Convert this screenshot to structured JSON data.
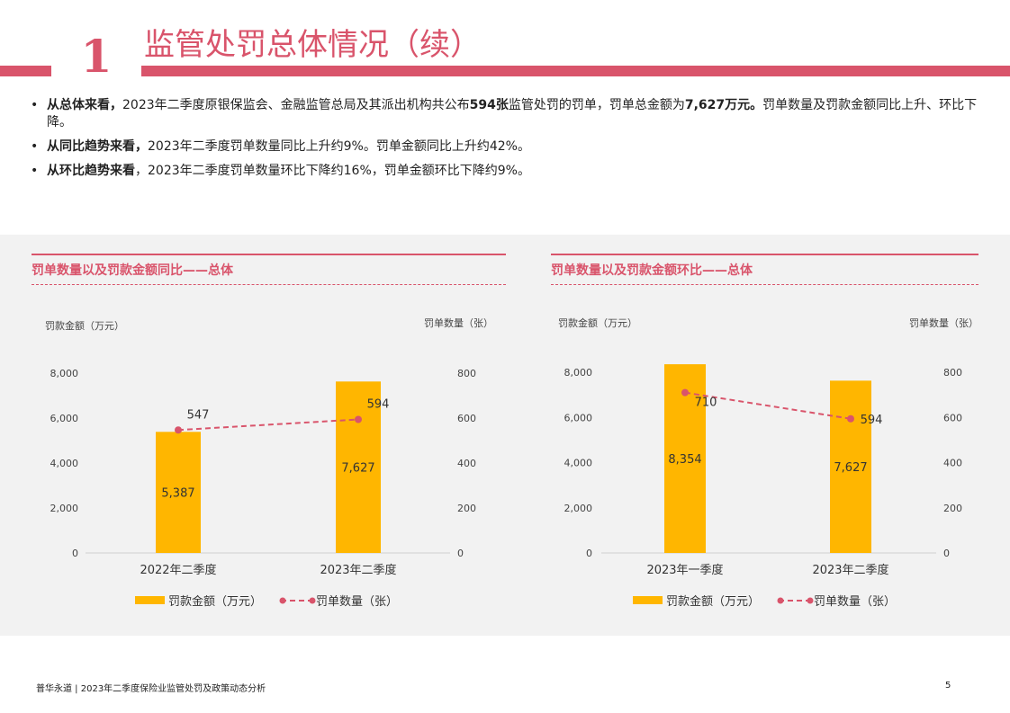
{
  "header": {
    "number": "1",
    "title": "监管处罚总体情况（续）"
  },
  "bullets": [
    {
      "marker": "•",
      "parts": [
        {
          "text": "从总体来看，",
          "bold": true
        },
        {
          "text": "2023年二季度原银保监会、金融监管总局及其派出机构共公布",
          "bold": false
        },
        {
          "text": "594张",
          "bold": true
        },
        {
          "text": "监管处罚的罚单，罚单总金额为",
          "bold": false
        },
        {
          "text": "7,627万元。",
          "bold": true
        },
        {
          "text": "罚单数量及罚款金额同比上升、环比下降。",
          "bold": false
        }
      ]
    },
    {
      "marker": "•",
      "parts": [
        {
          "text": "从同比趋势来看，",
          "bold": true
        },
        {
          "text": "2023年二季度罚单数量同比上升约9%。罚单金额同比上升约42%。",
          "bold": false
        }
      ]
    },
    {
      "marker": "•",
      "parts": [
        {
          "text": "从环比趋势来看",
          "bold": true
        },
        {
          "text": "，2023年二季度罚单数量环比下降约16%，罚单金额环比下降约9%。",
          "bold": false
        }
      ]
    }
  ],
  "colors": {
    "accent": "#d9546b",
    "bar": "#ffb600",
    "band": "#f2f2f2"
  },
  "chart_data": [
    {
      "type": "bar",
      "title": "罚单数量以及罚款金额同比——总体",
      "ylabel_left": "罚款金额（万元）",
      "ylabel_right": "罚单数量（张）",
      "categories": [
        "2022年二季度",
        "2023年二季度"
      ],
      "left_ticks": [
        "8,000",
        "6,000",
        "4,000",
        "2,000",
        "0"
      ],
      "right_ticks": [
        "800",
        "600",
        "400",
        "200",
        "0"
      ],
      "ylim_left": [
        0,
        8000
      ],
      "ylim_right": [
        0,
        800
      ],
      "series": [
        {
          "name": "罚款金额（万元）",
          "kind": "bar",
          "axis": "left",
          "values": [
            5387,
            7627
          ],
          "labels": [
            "5,387",
            "7,627"
          ]
        },
        {
          "name": "罚单数量（张）",
          "kind": "line",
          "axis": "right",
          "style": "dashed",
          "values": [
            547,
            594
          ],
          "labels": [
            "547",
            "594"
          ]
        }
      ],
      "legend": "bottom"
    },
    {
      "type": "bar",
      "title": "罚单数量以及罚款金额环比——总体",
      "ylabel_left": "罚款金额（万元）",
      "ylabel_right": "罚单数量（张）",
      "categories": [
        "2023年一季度",
        "2023年二季度"
      ],
      "left_ticks": [
        "8,000",
        "6,000",
        "4,000",
        "2,000",
        "0"
      ],
      "right_ticks": [
        "800",
        "600",
        "400",
        "200",
        "0"
      ],
      "ylim_left": [
        0,
        8000
      ],
      "ylim_right": [
        0,
        800
      ],
      "series": [
        {
          "name": "罚款金额（万元）",
          "kind": "bar",
          "axis": "left",
          "values": [
            8354,
            7627
          ],
          "labels": [
            "8,354",
            "7,627"
          ]
        },
        {
          "name": "罚单数量（张）",
          "kind": "line",
          "axis": "right",
          "style": "dashed",
          "values": [
            710,
            594
          ],
          "labels": [
            "710",
            "594"
          ]
        }
      ],
      "legend": "bottom"
    }
  ],
  "footer": {
    "left": "普华永道 | 2023年二季度保险业监管处罚及政策动态分析",
    "page": "5"
  }
}
